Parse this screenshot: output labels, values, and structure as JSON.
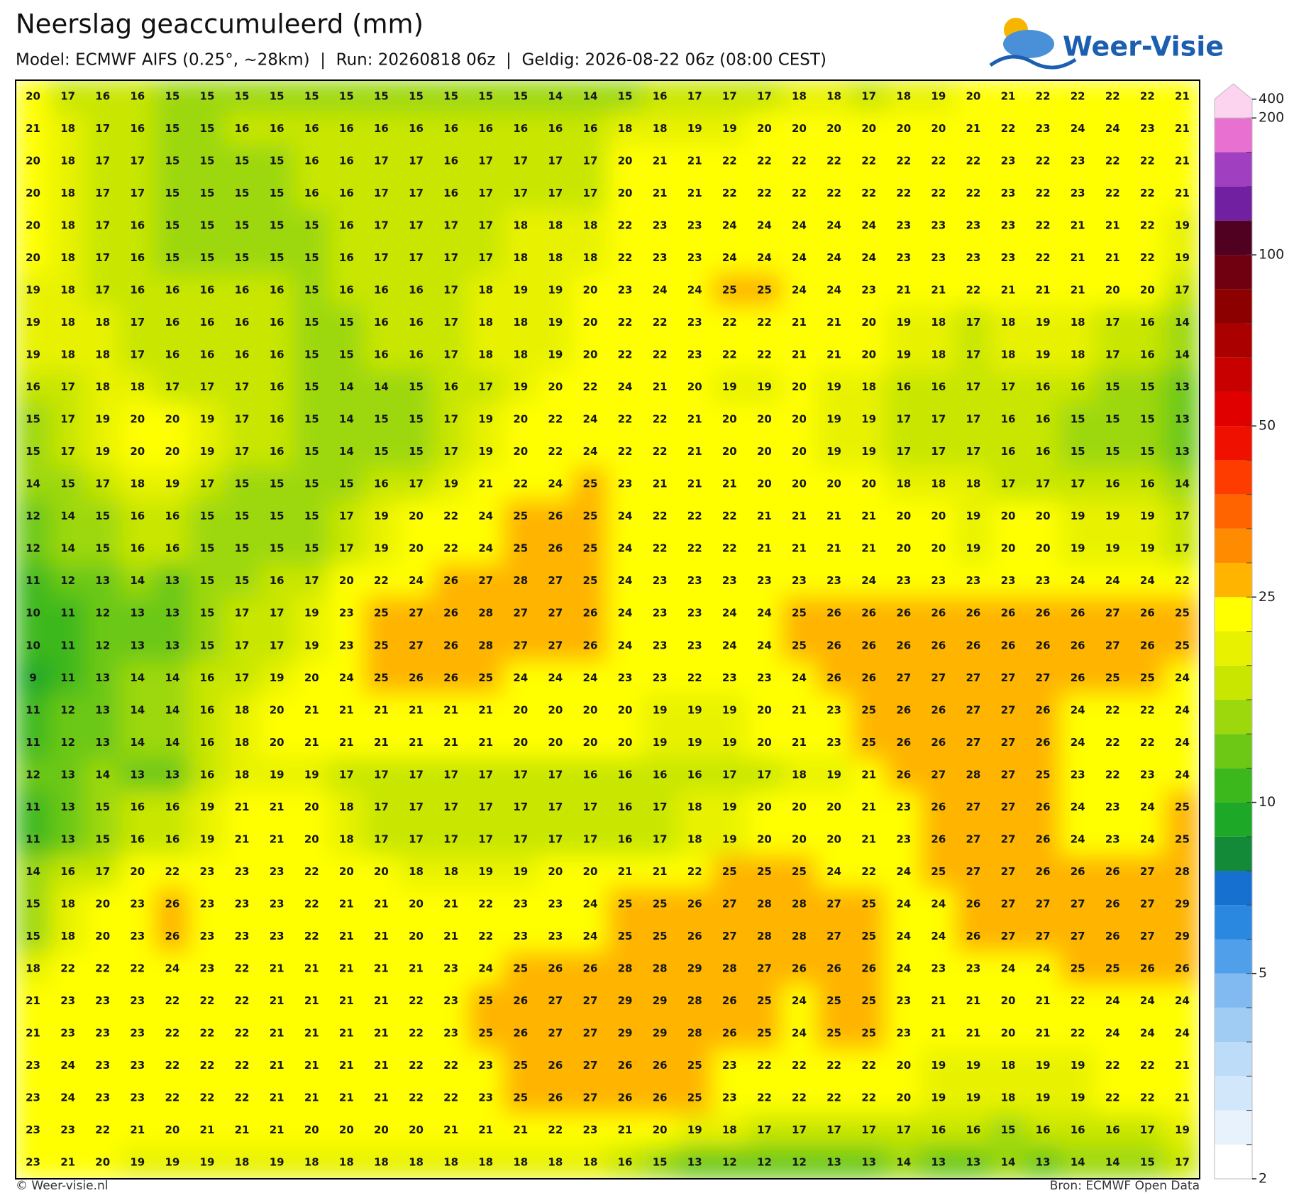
{
  "header": {
    "title": "Neerslag geaccumuleerd (mm)",
    "subtitle": "Model: ECMWF AIFS (0.25°, ~28km)  |  Run: 20260818 06z  |  Geldig: 2026-08-22 06z (08:00 CEST)",
    "logo": "Weer-Visie"
  },
  "grid": {
    "rows": [
      [
        20,
        17,
        16,
        16,
        15,
        15,
        15,
        15,
        15,
        15,
        15,
        15,
        15,
        15,
        15,
        14,
        14,
        15,
        16,
        17,
        17,
        17,
        18,
        18,
        17,
        18,
        19,
        20,
        21,
        22,
        22,
        22,
        22,
        21
      ],
      [
        21,
        18,
        17,
        16,
        15,
        15,
        16,
        16,
        16,
        16,
        16,
        16,
        16,
        16,
        16,
        16,
        16,
        18,
        18,
        19,
        19,
        20,
        20,
        20,
        20,
        20,
        20,
        21,
        22,
        23,
        24,
        24,
        23,
        21
      ],
      [
        20,
        18,
        17,
        17,
        15,
        15,
        15,
        15,
        16,
        16,
        17,
        17,
        16,
        17,
        17,
        17,
        17,
        20,
        21,
        21,
        22,
        22,
        22,
        22,
        22,
        22,
        22,
        22,
        23,
        22,
        23,
        22,
        22,
        21
      ],
      [
        20,
        18,
        17,
        17,
        15,
        15,
        15,
        15,
        16,
        16,
        17,
        17,
        16,
        17,
        17,
        17,
        17,
        20,
        21,
        21,
        22,
        22,
        22,
        22,
        22,
        22,
        22,
        22,
        23,
        22,
        23,
        22,
        22,
        21
      ],
      [
        20,
        18,
        17,
        16,
        15,
        15,
        15,
        15,
        15,
        16,
        17,
        17,
        17,
        17,
        18,
        18,
        18,
        22,
        23,
        23,
        24,
        24,
        24,
        24,
        24,
        23,
        23,
        23,
        23,
        22,
        21,
        21,
        22,
        19
      ],
      [
        20,
        18,
        17,
        16,
        15,
        15,
        15,
        15,
        15,
        16,
        17,
        17,
        17,
        17,
        18,
        18,
        18,
        22,
        23,
        23,
        24,
        24,
        24,
        24,
        24,
        23,
        23,
        23,
        23,
        22,
        21,
        21,
        22,
        19
      ],
      [
        19,
        18,
        17,
        16,
        16,
        16,
        16,
        16,
        15,
        16,
        16,
        16,
        17,
        18,
        19,
        19,
        20,
        23,
        24,
        24,
        25,
        25,
        24,
        24,
        23,
        21,
        21,
        22,
        21,
        21,
        21,
        20,
        20,
        17
      ],
      [
        19,
        18,
        18,
        17,
        16,
        16,
        16,
        16,
        15,
        15,
        16,
        16,
        17,
        18,
        18,
        19,
        20,
        22,
        22,
        23,
        22,
        22,
        21,
        21,
        20,
        19,
        18,
        17,
        18,
        19,
        18,
        17,
        16,
        14
      ],
      [
        19,
        18,
        18,
        17,
        16,
        16,
        16,
        16,
        15,
        15,
        16,
        16,
        17,
        18,
        18,
        19,
        20,
        22,
        22,
        23,
        22,
        22,
        21,
        21,
        20,
        19,
        18,
        17,
        18,
        19,
        18,
        17,
        16,
        14
      ],
      [
        16,
        17,
        18,
        18,
        17,
        17,
        17,
        16,
        15,
        14,
        14,
        15,
        16,
        17,
        19,
        20,
        22,
        24,
        21,
        20,
        19,
        19,
        20,
        19,
        18,
        16,
        16,
        17,
        17,
        16,
        16,
        15,
        15,
        13
      ],
      [
        15,
        17,
        19,
        20,
        20,
        19,
        17,
        16,
        15,
        14,
        15,
        15,
        17,
        19,
        20,
        22,
        24,
        22,
        22,
        21,
        20,
        20,
        20,
        19,
        19,
        17,
        17,
        17,
        16,
        16,
        15,
        15,
        15,
        13
      ],
      [
        15,
        17,
        19,
        20,
        20,
        19,
        17,
        16,
        15,
        14,
        15,
        15,
        17,
        19,
        20,
        22,
        24,
        22,
        22,
        21,
        20,
        20,
        20,
        19,
        19,
        17,
        17,
        17,
        16,
        16,
        15,
        15,
        15,
        13
      ],
      [
        14,
        15,
        17,
        18,
        19,
        17,
        15,
        15,
        15,
        15,
        16,
        17,
        19,
        21,
        22,
        24,
        25,
        23,
        21,
        21,
        21,
        20,
        20,
        20,
        20,
        18,
        18,
        18,
        17,
        17,
        17,
        16,
        16,
        14
      ],
      [
        12,
        14,
        15,
        16,
        16,
        15,
        15,
        15,
        15,
        17,
        19,
        20,
        22,
        24,
        25,
        26,
        25,
        24,
        22,
        22,
        22,
        21,
        21,
        21,
        21,
        20,
        20,
        19,
        20,
        20,
        19,
        19,
        19,
        17
      ],
      [
        12,
        14,
        15,
        16,
        16,
        15,
        15,
        15,
        15,
        17,
        19,
        20,
        22,
        24,
        25,
        26,
        25,
        24,
        22,
        22,
        22,
        21,
        21,
        21,
        21,
        20,
        20,
        19,
        20,
        20,
        19,
        19,
        19,
        17
      ],
      [
        11,
        12,
        13,
        14,
        13,
        15,
        15,
        16,
        17,
        20,
        22,
        24,
        26,
        27,
        28,
        27,
        25,
        24,
        23,
        23,
        23,
        23,
        23,
        23,
        24,
        23,
        23,
        23,
        23,
        23,
        24,
        24,
        24,
        22
      ],
      [
        10,
        11,
        12,
        13,
        13,
        15,
        17,
        17,
        19,
        23,
        25,
        27,
        26,
        28,
        27,
        27,
        26,
        24,
        23,
        23,
        24,
        24,
        25,
        26,
        26,
        26,
        26,
        26,
        26,
        26,
        26,
        27,
        26,
        25
      ],
      [
        10,
        11,
        12,
        13,
        13,
        15,
        17,
        17,
        19,
        23,
        25,
        27,
        26,
        28,
        27,
        27,
        26,
        24,
        23,
        23,
        24,
        24,
        25,
        26,
        26,
        26,
        26,
        26,
        26,
        26,
        26,
        27,
        26,
        25
      ],
      [
        9,
        11,
        13,
        14,
        14,
        16,
        17,
        19,
        20,
        24,
        25,
        26,
        26,
        25,
        24,
        24,
        24,
        23,
        23,
        22,
        23,
        23,
        24,
        26,
        26,
        27,
        27,
        27,
        27,
        27,
        26,
        25,
        25,
        24
      ],
      [
        11,
        12,
        13,
        14,
        14,
        16,
        18,
        20,
        21,
        21,
        21,
        21,
        21,
        21,
        20,
        20,
        20,
        20,
        19,
        19,
        19,
        20,
        21,
        23,
        25,
        26,
        26,
        27,
        27,
        26,
        24,
        22,
        22,
        24
      ],
      [
        11,
        12,
        13,
        14,
        14,
        16,
        18,
        20,
        21,
        21,
        21,
        21,
        21,
        21,
        20,
        20,
        20,
        20,
        19,
        19,
        19,
        20,
        21,
        23,
        25,
        26,
        26,
        27,
        27,
        26,
        24,
        22,
        22,
        24
      ],
      [
        12,
        13,
        14,
        13,
        13,
        16,
        18,
        19,
        19,
        17,
        17,
        17,
        17,
        17,
        17,
        17,
        16,
        16,
        16,
        16,
        17,
        17,
        18,
        19,
        21,
        26,
        27,
        28,
        27,
        25,
        23,
        22,
        23,
        24
      ],
      [
        11,
        13,
        15,
        16,
        16,
        19,
        21,
        21,
        20,
        18,
        17,
        17,
        17,
        17,
        17,
        17,
        17,
        16,
        17,
        18,
        19,
        20,
        20,
        20,
        21,
        23,
        26,
        27,
        27,
        26,
        24,
        23,
        24,
        25
      ],
      [
        11,
        13,
        15,
        16,
        16,
        19,
        21,
        21,
        20,
        18,
        17,
        17,
        17,
        17,
        17,
        17,
        17,
        16,
        17,
        18,
        19,
        20,
        20,
        20,
        21,
        23,
        26,
        27,
        27,
        26,
        24,
        23,
        24,
        25
      ],
      [
        14,
        16,
        17,
        20,
        22,
        23,
        23,
        23,
        22,
        20,
        20,
        18,
        18,
        19,
        19,
        20,
        20,
        21,
        21,
        22,
        25,
        25,
        25,
        24,
        22,
        24,
        25,
        27,
        27,
        26,
        26,
        26,
        27,
        28
      ],
      [
        15,
        18,
        20,
        23,
        26,
        23,
        23,
        23,
        22,
        21,
        21,
        20,
        21,
        22,
        23,
        23,
        24,
        25,
        25,
        26,
        27,
        28,
        28,
        27,
        25,
        24,
        24,
        26,
        27,
        27,
        27,
        26,
        27,
        29
      ],
      [
        15,
        18,
        20,
        23,
        26,
        23,
        23,
        23,
        22,
        21,
        21,
        20,
        21,
        22,
        23,
        23,
        24,
        25,
        25,
        26,
        27,
        28,
        28,
        27,
        25,
        24,
        24,
        26,
        27,
        27,
        27,
        26,
        27,
        29
      ],
      [
        18,
        22,
        22,
        22,
        24,
        23,
        22,
        21,
        21,
        21,
        21,
        21,
        23,
        24,
        25,
        26,
        26,
        28,
        28,
        29,
        28,
        27,
        26,
        26,
        26,
        24,
        23,
        23,
        24,
        24,
        25,
        25,
        26,
        26
      ],
      [
        21,
        23,
        23,
        23,
        22,
        22,
        22,
        21,
        21,
        21,
        21,
        22,
        23,
        25,
        26,
        27,
        27,
        29,
        29,
        28,
        26,
        25,
        24,
        25,
        25,
        23,
        21,
        21,
        20,
        21,
        22,
        24,
        24,
        24
      ],
      [
        21,
        23,
        23,
        23,
        22,
        22,
        22,
        21,
        21,
        21,
        21,
        22,
        23,
        25,
        26,
        27,
        27,
        29,
        29,
        28,
        26,
        25,
        24,
        25,
        25,
        23,
        21,
        21,
        20,
        21,
        22,
        24,
        24,
        24
      ],
      [
        23,
        24,
        23,
        23,
        22,
        22,
        22,
        21,
        21,
        21,
        21,
        22,
        22,
        23,
        25,
        26,
        27,
        26,
        26,
        25,
        23,
        22,
        22,
        22,
        22,
        20,
        19,
        19,
        18,
        19,
        19,
        22,
        22,
        21
      ],
      [
        23,
        24,
        23,
        23,
        22,
        22,
        22,
        21,
        21,
        21,
        21,
        22,
        22,
        23,
        25,
        26,
        27,
        26,
        26,
        25,
        23,
        22,
        22,
        22,
        22,
        20,
        19,
        19,
        18,
        19,
        19,
        22,
        22,
        21
      ],
      [
        23,
        23,
        22,
        21,
        20,
        21,
        21,
        21,
        20,
        20,
        20,
        20,
        21,
        21,
        21,
        22,
        23,
        21,
        20,
        19,
        18,
        17,
        17,
        17,
        17,
        17,
        16,
        16,
        15,
        16,
        16,
        16,
        17,
        19
      ],
      [
        23,
        21,
        20,
        19,
        19,
        19,
        18,
        19,
        18,
        18,
        18,
        18,
        18,
        18,
        18,
        18,
        18,
        16,
        15,
        13,
        12,
        12,
        12,
        13,
        13,
        14,
        13,
        13,
        14,
        13,
        14,
        14,
        15,
        17
      ]
    ]
  },
  "colorbar": {
    "levels": [
      2,
      2.5,
      3,
      3.5,
      4,
      4.5,
      5,
      6,
      7,
      8,
      9,
      10,
      12,
      14,
      16,
      18,
      20,
      25,
      30,
      35,
      40,
      45,
      50,
      60,
      70,
      80,
      90,
      100,
      125,
      150,
      175,
      200,
      400
    ],
    "colors": [
      "#ffffff",
      "#e8f2fc",
      "#d2e8fa",
      "#bcdcf8",
      "#a0ccf4",
      "#80baf0",
      "#4f9fea",
      "#2a88e0",
      "#1670d0",
      "#128a38",
      "#1ea828",
      "#3cb81c",
      "#6cc814",
      "#9cd80c",
      "#c8e600",
      "#e8f200",
      "#ffff00",
      "#ffb400",
      "#ff8c00",
      "#ff6400",
      "#ff3c00",
      "#f01000",
      "#e00000",
      "#c80000",
      "#aa0000",
      "#8c0000",
      "#700010",
      "#500020",
      "#7020a0",
      "#a040c0",
      "#e870d0",
      "#fcd4f0"
    ],
    "ticks": [
      2,
      5,
      10,
      25,
      50,
      100,
      200,
      400
    ]
  },
  "footer": {
    "left": "© Weer-visie.nl",
    "right": "Bron: ECMWF Open Data"
  }
}
